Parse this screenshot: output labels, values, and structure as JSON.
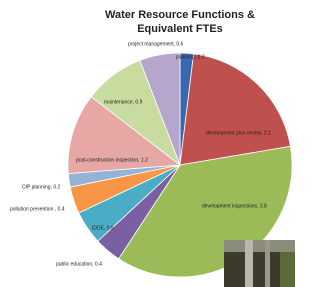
{
  "chart_data": {
    "type": "pie",
    "title": "Water Resource Functions & Equivalent FTEs",
    "values": [
      0.2,
      2.1,
      3.8,
      0.4,
      0.5,
      0.4,
      0.2,
      1.2,
      0.9,
      0.6
    ],
    "value_labels": [
      "planning, 0.2",
      "development plan review, 2.1",
      "development inspections, 3.8",
      "public education, 0.4",
      "IDDE, 0.5",
      "pollution prevention , 0.4",
      "CIP planning, 0.2",
      "post-construction inspection, 1.2",
      "maintenance, 0.9",
      "project management, 0.6"
    ],
    "colors": [
      "#3a68b0",
      "#c0504d",
      "#9bbb59",
      "#7b5fa3",
      "#4bacc6",
      "#f79646",
      "#95b3d7",
      "#e6a7a5",
      "#c9dca0",
      "#b7a6cc"
    ]
  }
}
